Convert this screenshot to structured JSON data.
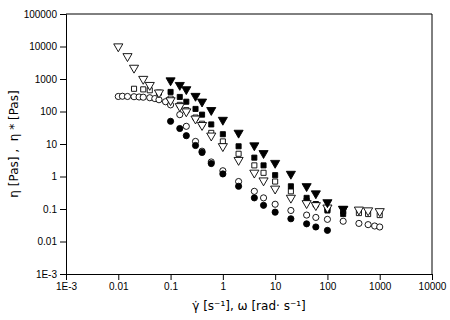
{
  "chart_data": {
    "type": "scatter",
    "x_label": "γ̇ [s⁻¹], ω [rad· s⁻¹]",
    "y_label": "η [Pas] ,  η * [Pas]",
    "log": true,
    "grid": false,
    "xlim": [
      0.001,
      10000
    ],
    "ylim": [
      0.001,
      100000
    ],
    "xticks": [
      {
        "value": 0.001,
        "label": "1E-3"
      },
      0.01,
      0.1,
      1,
      10,
      100,
      1000,
      10000
    ],
    "yticks": [
      {
        "value": 0.001,
        "label": "1E-3"
      },
      0.01,
      0.1,
      1,
      10,
      100,
      1000,
      10000,
      100000
    ],
    "series": [
      {
        "color": "black",
        "marker": "circle-open",
        "x": [
          0.01,
          0.012,
          0.015,
          0.02,
          0.025,
          0.03,
          0.04,
          0.05,
          0.06,
          0.08,
          0.1,
          0.15,
          0.2,
          0.3,
          0.4,
          0.6,
          1.0,
          2.0,
          4.0,
          6.0,
          10,
          20,
          40,
          60,
          100,
          200,
          400,
          600,
          800,
          1000
        ],
        "values": [
          290,
          295,
          290,
          285,
          280,
          275,
          265,
          250,
          230,
          200,
          160,
          80,
          35,
          12,
          6,
          2.8,
          1.5,
          0.7,
          0.35,
          0.22,
          0.14,
          0.09,
          0.065,
          0.055,
          0.048,
          0.042,
          0.036,
          0.033,
          0.03,
          0.028
        ]
      },
      {
        "color": "black",
        "marker": "circle",
        "x": [
          0.1,
          0.15,
          0.2,
          0.3,
          0.4,
          0.6,
          1.0,
          2.0,
          4.0,
          6.0,
          10,
          20,
          40,
          60,
          100
        ],
        "values": [
          50,
          30,
          18,
          9,
          5.5,
          2.5,
          1.2,
          0.5,
          0.22,
          0.13,
          0.08,
          0.05,
          0.035,
          0.028,
          0.022
        ]
      },
      {
        "color": "black",
        "marker": "square-open",
        "x": [
          0.02,
          0.03,
          0.04,
          0.06,
          0.1,
          0.15,
          0.2,
          0.3,
          0.4,
          0.6,
          1.0,
          2.0,
          4.0,
          6.0,
          10,
          20,
          40,
          60,
          100,
          200,
          400,
          600,
          1000
        ],
        "values": [
          500,
          480,
          450,
          380,
          250,
          160,
          110,
          65,
          42,
          22,
          12,
          5.0,
          2.2,
          1.3,
          0.7,
          0.35,
          0.18,
          0.14,
          0.1,
          0.085,
          0.075,
          0.07,
          0.065
        ]
      },
      {
        "color": "black",
        "marker": "square",
        "x": [
          0.1,
          0.15,
          0.2,
          0.3,
          0.4,
          0.6,
          1.0,
          2.0,
          4.0,
          6.0,
          10,
          20,
          40,
          60,
          100,
          200
        ],
        "values": [
          400,
          280,
          200,
          120,
          80,
          40,
          20,
          8.5,
          3.8,
          2.2,
          1.1,
          0.5,
          0.22,
          0.14,
          0.09,
          0.07
        ]
      },
      {
        "color": "black",
        "marker": "triangle-down-open",
        "x": [
          0.01,
          0.015,
          0.02,
          0.03,
          0.04,
          0.06,
          0.1,
          0.15,
          0.2,
          0.3,
          0.4,
          0.6,
          1.0,
          2.0,
          4.0,
          6.0,
          10,
          20,
          40,
          60,
          100,
          200,
          400,
          600,
          1000
        ],
        "values": [
          10000,
          5000,
          2200,
          1000,
          650,
          380,
          220,
          145,
          100,
          60,
          38,
          18,
          8.5,
          3.2,
          1.3,
          0.75,
          0.42,
          0.22,
          0.15,
          0.13,
          0.11,
          0.1,
          0.095,
          0.09,
          0.085
        ]
      },
      {
        "color": "black",
        "marker": "triangle-down",
        "x": [
          0.1,
          0.15,
          0.2,
          0.3,
          0.4,
          0.6,
          1.0,
          2.0,
          4.0,
          6.0,
          10,
          20,
          40,
          60,
          100,
          200
        ],
        "values": [
          900,
          650,
          480,
          300,
          200,
          110,
          55,
          22,
          9,
          5.2,
          2.6,
          1.2,
          0.5,
          0.3,
          0.16,
          0.1
        ]
      }
    ]
  }
}
